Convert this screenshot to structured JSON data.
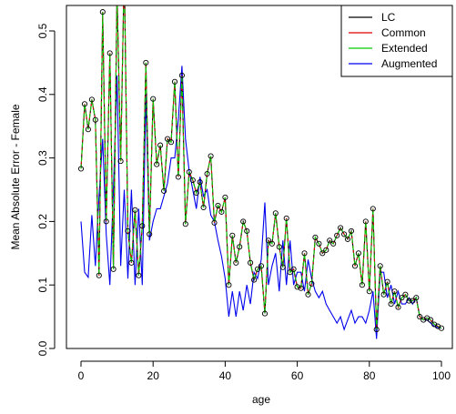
{
  "chart_data": {
    "type": "line",
    "xlabel": "age",
    "ylabel": "Mean Absolute Error - Female",
    "xlim": [
      0,
      100
    ],
    "ylim": [
      0,
      0.55
    ],
    "xticks": [
      "0",
      "20",
      "40",
      "60",
      "80",
      "100"
    ],
    "yticks": [
      "0.0",
      "0.1",
      "0.2",
      "0.3",
      "0.4",
      "0.5"
    ],
    "legend_position": "top-right",
    "x": [
      0,
      1,
      2,
      3,
      4,
      5,
      6,
      7,
      8,
      9,
      10,
      11,
      12,
      13,
      14,
      15,
      16,
      17,
      18,
      19,
      20,
      21,
      22,
      23,
      24,
      25,
      26,
      27,
      28,
      29,
      30,
      31,
      32,
      33,
      34,
      35,
      36,
      37,
      38,
      39,
      40,
      41,
      42,
      43,
      44,
      45,
      46,
      47,
      48,
      49,
      50,
      51,
      52,
      53,
      54,
      55,
      56,
      57,
      58,
      59,
      60,
      61,
      62,
      63,
      64,
      65,
      66,
      67,
      68,
      69,
      70,
      71,
      72,
      73,
      74,
      75,
      76,
      77,
      78,
      79,
      80,
      81,
      82,
      83,
      84,
      85,
      86,
      87,
      88,
      89,
      90,
      91,
      92,
      93,
      94,
      95,
      96,
      97,
      98,
      99,
      100
    ],
    "series": [
      {
        "name": "LC",
        "color": "#000000",
        "markers": true,
        "values": [
          0.283,
          0.385,
          0.345,
          0.392,
          0.36,
          0.115,
          0.53,
          0.2,
          0.465,
          0.125,
          0.56,
          0.295,
          0.6,
          0.185,
          0.135,
          0.218,
          0.115,
          0.193,
          0.45,
          0.18,
          0.393,
          0.29,
          0.32,
          0.248,
          0.33,
          0.325,
          0.42,
          0.27,
          0.43,
          0.196,
          0.278,
          0.265,
          0.245,
          0.262,
          0.222,
          0.275,
          0.303,
          0.198,
          0.225,
          0.215,
          0.238,
          0.1,
          0.178,
          0.135,
          0.16,
          0.2,
          0.185,
          0.135,
          0.108,
          0.125,
          0.13,
          0.055,
          0.17,
          0.165,
          0.213,
          0.16,
          0.128,
          0.205,
          0.12,
          0.125,
          0.097,
          0.095,
          0.15,
          0.085,
          0.102,
          0.175,
          0.165,
          0.15,
          0.155,
          0.17,
          0.165,
          0.178,
          0.19,
          0.18,
          0.172,
          0.185,
          0.13,
          0.15,
          0.1,
          0.2,
          0.09,
          0.22,
          0.03,
          0.13,
          0.085,
          0.105,
          0.07,
          0.09,
          0.065,
          0.08,
          0.085,
          0.075,
          0.075,
          0.08,
          0.05,
          0.045,
          0.048,
          0.045,
          0.038,
          0.035,
          0.032
        ]
      },
      {
        "name": "Common",
        "color": "#dd0000",
        "markers": false,
        "values": [
          0.283,
          0.385,
          0.345,
          0.392,
          0.36,
          0.115,
          0.53,
          0.2,
          0.465,
          0.125,
          0.56,
          0.295,
          0.6,
          0.185,
          0.135,
          0.218,
          0.115,
          0.193,
          0.45,
          0.18,
          0.393,
          0.29,
          0.32,
          0.248,
          0.33,
          0.325,
          0.42,
          0.27,
          0.43,
          0.196,
          0.278,
          0.265,
          0.245,
          0.262,
          0.222,
          0.275,
          0.303,
          0.198,
          0.225,
          0.215,
          0.238,
          0.1,
          0.178,
          0.135,
          0.16,
          0.2,
          0.185,
          0.135,
          0.108,
          0.125,
          0.13,
          0.055,
          0.17,
          0.165,
          0.213,
          0.16,
          0.128,
          0.205,
          0.12,
          0.125,
          0.097,
          0.095,
          0.15,
          0.085,
          0.102,
          0.175,
          0.165,
          0.15,
          0.155,
          0.17,
          0.165,
          0.178,
          0.19,
          0.18,
          0.172,
          0.185,
          0.13,
          0.15,
          0.1,
          0.2,
          0.09,
          0.22,
          0.03,
          0.13,
          0.085,
          0.105,
          0.07,
          0.09,
          0.065,
          0.08,
          0.085,
          0.075,
          0.075,
          0.08,
          0.05,
          0.045,
          0.048,
          0.045,
          0.038,
          0.035,
          0.032
        ]
      },
      {
        "name": "Extended",
        "color": "#00cc00",
        "markers": false,
        "values": [
          0.283,
          0.385,
          0.345,
          0.392,
          0.36,
          0.115,
          0.53,
          0.2,
          0.465,
          0.125,
          0.56,
          0.295,
          0.6,
          0.185,
          0.135,
          0.218,
          0.115,
          0.193,
          0.45,
          0.18,
          0.393,
          0.29,
          0.32,
          0.248,
          0.33,
          0.325,
          0.42,
          0.27,
          0.43,
          0.196,
          0.278,
          0.265,
          0.245,
          0.262,
          0.222,
          0.275,
          0.303,
          0.198,
          0.225,
          0.215,
          0.238,
          0.1,
          0.178,
          0.135,
          0.16,
          0.2,
          0.185,
          0.135,
          0.108,
          0.125,
          0.13,
          0.055,
          0.17,
          0.165,
          0.213,
          0.16,
          0.128,
          0.205,
          0.12,
          0.125,
          0.097,
          0.095,
          0.15,
          0.085,
          0.102,
          0.175,
          0.165,
          0.15,
          0.155,
          0.17,
          0.165,
          0.178,
          0.19,
          0.18,
          0.172,
          0.185,
          0.13,
          0.15,
          0.1,
          0.2,
          0.09,
          0.22,
          0.03,
          0.13,
          0.085,
          0.105,
          0.07,
          0.09,
          0.065,
          0.08,
          0.085,
          0.075,
          0.075,
          0.08,
          0.05,
          0.045,
          0.048,
          0.045,
          0.038,
          0.035,
          0.032
        ]
      },
      {
        "name": "Augmented",
        "color": "#0000ee",
        "markers": false,
        "values": [
          0.2,
          0.12,
          0.112,
          0.21,
          0.13,
          0.24,
          0.33,
          0.18,
          0.1,
          0.25,
          0.43,
          0.13,
          0.25,
          0.11,
          0.25,
          0.1,
          0.22,
          0.1,
          0.4,
          0.17,
          0.2,
          0.22,
          0.22,
          0.24,
          0.26,
          0.3,
          0.3,
          0.36,
          0.445,
          0.33,
          0.28,
          0.25,
          0.22,
          0.27,
          0.24,
          0.25,
          0.21,
          0.2,
          0.17,
          0.145,
          0.11,
          0.05,
          0.09,
          0.05,
          0.09,
          0.06,
          0.1,
          0.07,
          0.12,
          0.11,
          0.14,
          0.23,
          0.1,
          0.13,
          0.15,
          0.09,
          0.17,
          0.1,
          0.17,
          0.1,
          0.12,
          0.12,
          0.09,
          0.14,
          0.11,
          0.09,
          0.08,
          0.09,
          0.07,
          0.06,
          0.05,
          0.04,
          0.05,
          0.03,
          0.045,
          0.06,
          0.04,
          0.05,
          0.05,
          0.04,
          0.06,
          0.09,
          0.015,
          0.12,
          0.12,
          0.08,
          0.1,
          0.07,
          0.09,
          0.07,
          0.07,
          0.08,
          0.07,
          0.08,
          0.05,
          0.045,
          0.045,
          0.04,
          0.035,
          0.033,
          0.032
        ]
      }
    ]
  }
}
